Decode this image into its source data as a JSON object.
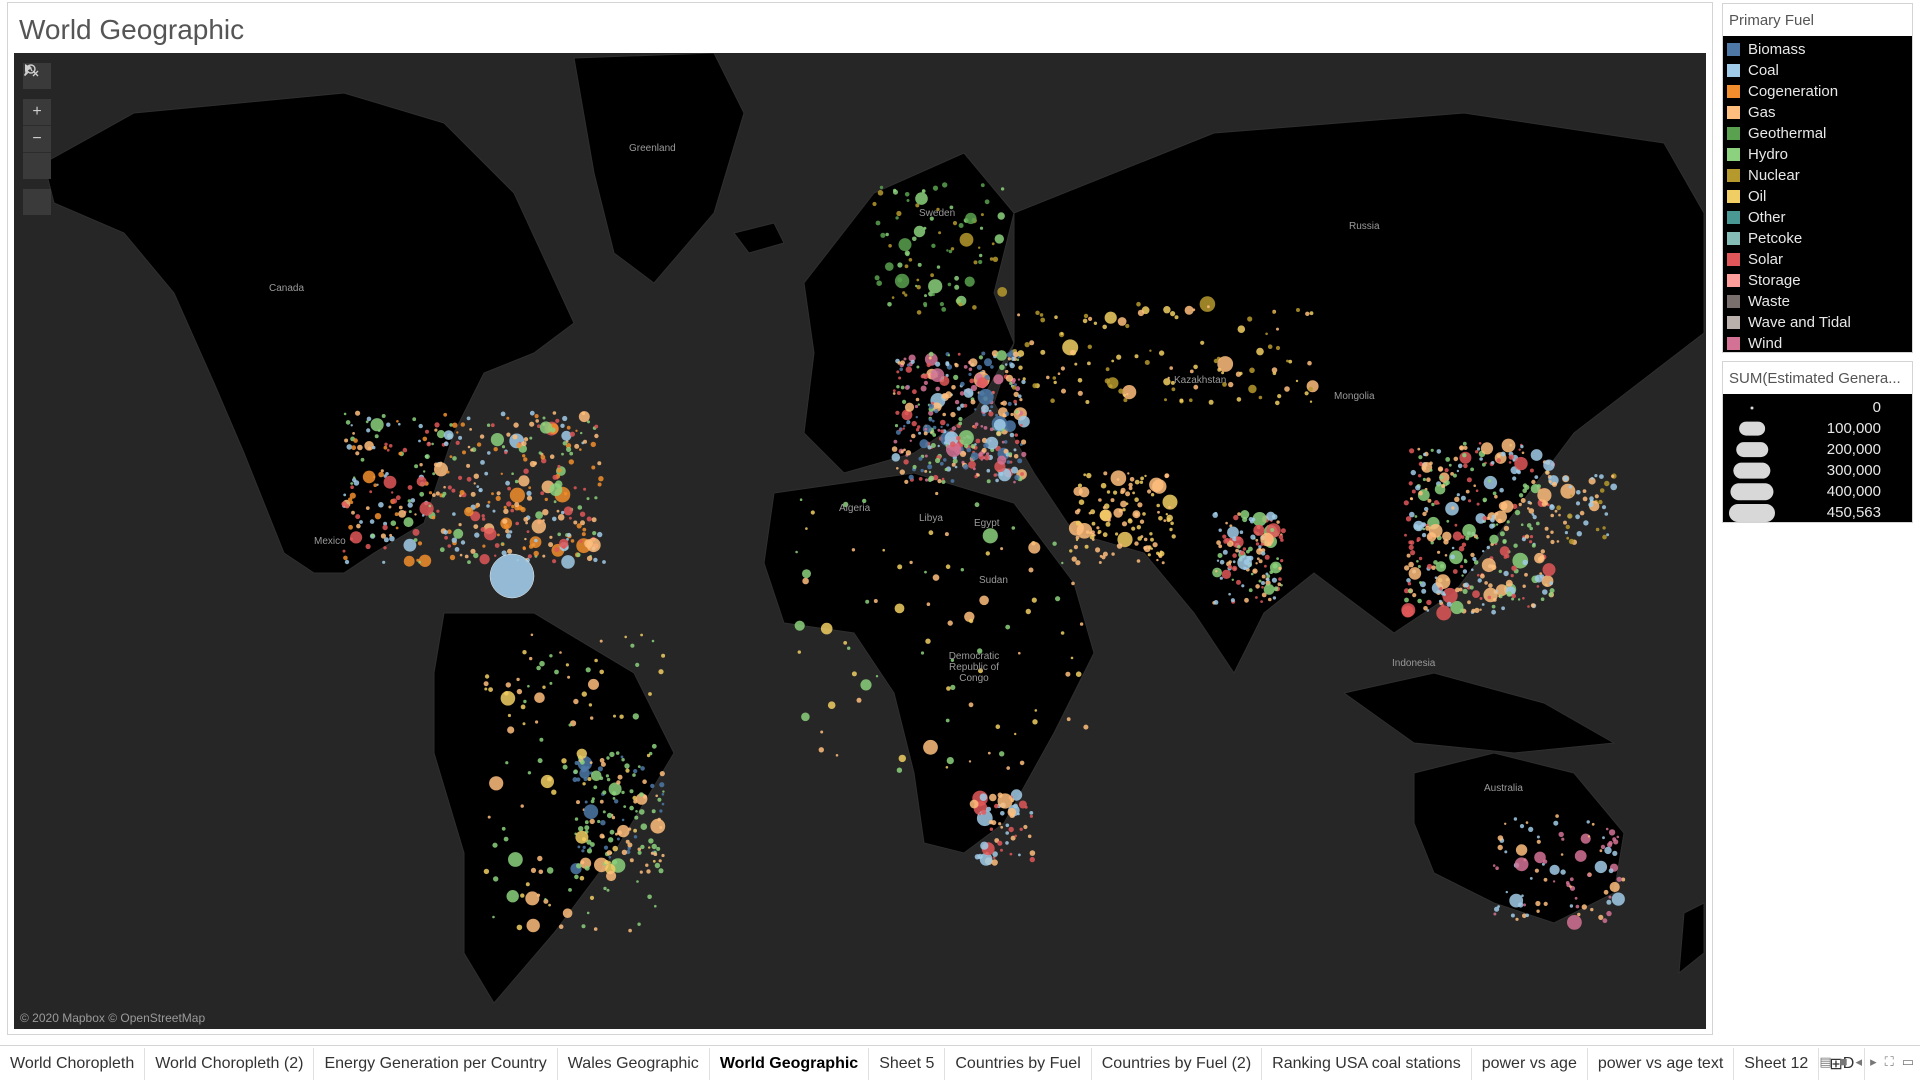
{
  "sheet": {
    "title": "World Geographic"
  },
  "map": {
    "attribution": "© 2020 Mapbox © OpenStreetMap",
    "background_color": "#262626",
    "land_color": "#000000",
    "labels": [
      {
        "text": "Greenland"
      },
      {
        "text": "Russia"
      },
      {
        "text": "Canada"
      },
      {
        "text": "Kazakhstan"
      },
      {
        "text": "Mongolia"
      },
      {
        "text": "Algeria"
      },
      {
        "text": "Libya"
      },
      {
        "text": "Egypt"
      },
      {
        "text": "Sudan"
      },
      {
        "text": "Democratic Republic of Congo"
      },
      {
        "text": "Australia"
      },
      {
        "text": "Indonesia"
      },
      {
        "text": "Mexico"
      },
      {
        "text": "Sweden"
      }
    ],
    "toolbar": {
      "search_icon": "search-icon",
      "zoom_in": "+",
      "zoom_out": "−",
      "reset_icon": "reset-icon",
      "expand_icon": "play-icon"
    }
  },
  "legend_fuel": {
    "title": "Primary Fuel",
    "items": [
      {
        "label": "Biomass",
        "color": "#4e79a7"
      },
      {
        "label": "Coal",
        "color": "#a0cbe8"
      },
      {
        "label": "Cogeneration",
        "color": "#f28e2b"
      },
      {
        "label": "Gas",
        "color": "#ffbe7d"
      },
      {
        "label": "Geothermal",
        "color": "#59a14f"
      },
      {
        "label": "Hydro",
        "color": "#8cd17d"
      },
      {
        "label": "Nuclear",
        "color": "#b6992d"
      },
      {
        "label": "Oil",
        "color": "#f1ce63"
      },
      {
        "label": "Other",
        "color": "#499894"
      },
      {
        "label": "Petcoke",
        "color": "#86bcb6"
      },
      {
        "label": "Solar",
        "color": "#e15759"
      },
      {
        "label": "Storage",
        "color": "#ff9d9a"
      },
      {
        "label": "Waste",
        "color": "#79706e"
      },
      {
        "label": "Wave and Tidal",
        "color": "#bab0ac"
      },
      {
        "label": "Wind",
        "color": "#d37295"
      }
    ]
  },
  "legend_size": {
    "title": "SUM(Estimated Genera...",
    "items": [
      {
        "label": "0",
        "value": 0
      },
      {
        "label": "100,000",
        "value": 100000
      },
      {
        "label": "200,000",
        "value": 200000
      },
      {
        "label": "300,000",
        "value": 300000
      },
      {
        "label": "400,000",
        "value": 400000
      },
      {
        "label": "450,563",
        "value": 450563
      }
    ]
  },
  "tabs": [
    {
      "label": "World Choropleth",
      "active": false
    },
    {
      "label": "World Choropleth (2)",
      "active": false
    },
    {
      "label": "Energy Generation per Country",
      "active": false
    },
    {
      "label": "Wales Geographic",
      "active": false
    },
    {
      "label": "World Geographic",
      "active": true
    },
    {
      "label": "Sheet 5",
      "active": false
    },
    {
      "label": "Countries by Fuel",
      "active": false
    },
    {
      "label": "Countries by Fuel (2)",
      "active": false
    },
    {
      "label": "Ranking USA coal stations",
      "active": false
    },
    {
      "label": "power vs age",
      "active": false
    },
    {
      "label": "power vs age text",
      "active": false
    },
    {
      "label": "Sheet 12",
      "active": false
    },
    {
      "label": "D",
      "active": false
    }
  ]
}
